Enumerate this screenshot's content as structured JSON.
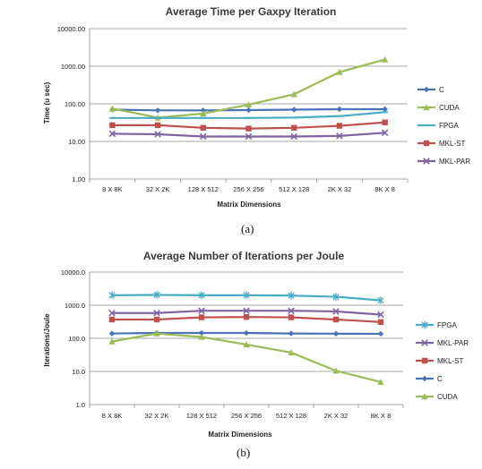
{
  "chart_data": [
    {
      "type": "line",
      "title": "Average Time per Gaxpy Iteration",
      "xlabel": "Matrix Dimensions",
      "ylabel": "Time (u sec)",
      "scale": "log",
      "ylim": [
        1,
        10000
      ],
      "yticks": [
        "1.00",
        "10.00",
        "100.00",
        "1000.00",
        "10000.00"
      ],
      "categories": [
        "8 X 8K",
        "32 X 2K",
        "128 X 512",
        "256 X 256",
        "512 X 128",
        "2K X 32",
        "8K X 8"
      ],
      "legend_position": "right",
      "grid": true,
      "caption": "(a)",
      "series": [
        {
          "name": "C",
          "color": "#4a72b8",
          "marker": "diamond",
          "values": [
            70,
            67,
            67,
            68,
            70,
            72,
            72
          ]
        },
        {
          "name": "CUDA",
          "color": "#9bbb59",
          "marker": "triangle",
          "values": [
            75,
            43,
            55,
            95,
            180,
            700,
            1500
          ]
        },
        {
          "name": "FPGA",
          "color": "#4bacc6",
          "marker": "bar",
          "values": [
            42,
            42,
            42,
            42,
            43,
            47,
            60
          ]
        },
        {
          "name": "MKL-ST",
          "color": "#c0504d",
          "marker": "square",
          "values": [
            27,
            27,
            23,
            22,
            23,
            26,
            32
          ]
        },
        {
          "name": "MKL-PAR",
          "color": "#8064a2",
          "marker": "x",
          "values": [
            16,
            15.5,
            13.5,
            13.5,
            13.5,
            14,
            17
          ]
        }
      ]
    },
    {
      "type": "line",
      "title": "Average Number of Iterations per Joule",
      "xlabel": "Matrix Dimensions",
      "ylabel": "Iterations/Joule",
      "scale": "log",
      "ylim": [
        1,
        10000
      ],
      "yticks": [
        "1.0",
        "10.0",
        "100.0",
        "1000.0",
        "10000.0"
      ],
      "categories": [
        "8 X 8K",
        "32 X 2K",
        "128 X 512",
        "256 X 256",
        "512 X 128",
        "2K X 32",
        "8K X 8"
      ],
      "legend_position": "right",
      "grid": true,
      "caption": "(b)",
      "series": [
        {
          "name": "FPGA",
          "color": "#4bacc6",
          "marker": "xbar",
          "values": [
            2000,
            2050,
            2000,
            2000,
            1950,
            1800,
            1400
          ]
        },
        {
          "name": "MKL-PAR",
          "color": "#8064a2",
          "marker": "x",
          "values": [
            580,
            580,
            680,
            680,
            680,
            650,
            520
          ]
        },
        {
          "name": "MKL-ST",
          "color": "#c0504d",
          "marker": "square",
          "values": [
            370,
            370,
            430,
            440,
            430,
            370,
            310
          ]
        },
        {
          "name": "C",
          "color": "#4a72b8",
          "marker": "diamond",
          "values": [
            140,
            145,
            145,
            145,
            140,
            138,
            137
          ]
        },
        {
          "name": "CUDA",
          "color": "#9bbb59",
          "marker": "triangle",
          "values": [
            80,
            140,
            110,
            65,
            37,
            10.5,
            4.8
          ]
        }
      ]
    }
  ]
}
